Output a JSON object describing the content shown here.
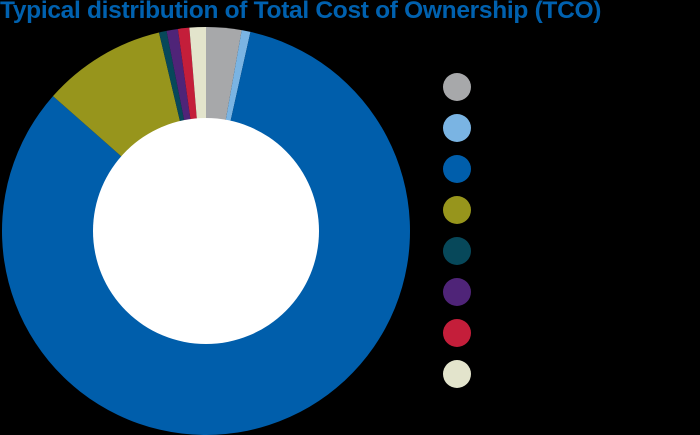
{
  "chart_data": {
    "type": "pie",
    "variant": "donut",
    "title": "Typical distribution of Total Cost of Ownership (TCO)",
    "subtitle": "",
    "start_angle_deg": 0,
    "direction": "clockwise",
    "inner_radius_ratio": 0.555,
    "legend_position": "right",
    "legend_labels_legible": false,
    "slices": [
      {
        "label": "",
        "value": 2.8,
        "color": "#A7A8AA"
      },
      {
        "label": "",
        "value": 0.7,
        "color": "#7AB4E3"
      },
      {
        "label": "",
        "value": 83.0,
        "color": "#005EAB"
      },
      {
        "label": "",
        "value": 9.8,
        "color": "#97951C"
      },
      {
        "label": "",
        "value": 0.6,
        "color": "#07485A"
      },
      {
        "label": "",
        "value": 0.9,
        "color": "#4F2478"
      },
      {
        "label": "",
        "value": 0.9,
        "color": "#C41E3A"
      },
      {
        "label": "",
        "value": 1.3,
        "color": "#E3E4CC"
      }
    ]
  },
  "colors": {
    "background": "#000000",
    "title": "#0061AF",
    "donut_hole": "#FFFFFF"
  }
}
